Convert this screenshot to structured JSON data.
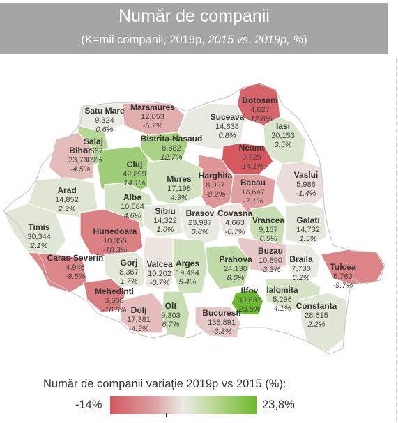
{
  "header": {
    "title": "Număr de companii",
    "subtitle_prefix": "(K=mii companii, 2019p, ",
    "subtitle_italic": "2015 vs. 2019p, %",
    "subtitle_suffix": ")"
  },
  "legend": {
    "title": "Număr de companii variație 2019p vs 2015 (%):",
    "min_label": "-14%",
    "max_label": "23,8%",
    "colors": {
      "low": "#d4585e",
      "mid": "#ecebe6",
      "high": "#6cba2d"
    }
  },
  "counties": [
    {
      "name": "Satu Mare",
      "value": "9,324",
      "change": "0.6%",
      "pct": 0.6
    },
    {
      "name": "Maramures",
      "value": "12,053",
      "change": "-5.7%",
      "pct": -5.7
    },
    {
      "name": "Botosani",
      "value": "4,627",
      "change": "-12.8%",
      "pct": -12.8
    },
    {
      "name": "Suceava",
      "value": "14,638",
      "change": "0.8%",
      "pct": 0.8
    },
    {
      "name": "Salaj",
      "value": "6,667",
      "change": "9.9%",
      "pct": 9.9
    },
    {
      "name": "Bistrita-Nasaud",
      "value": "8,882",
      "change": "12.7%",
      "pct": 12.7
    },
    {
      "name": "Iasi",
      "value": "20,153",
      "change": "3.5%",
      "pct": 3.5
    },
    {
      "name": "Bihor",
      "value": "23,799",
      "change": "-4.5%",
      "pct": -4.5
    },
    {
      "name": "Neamt",
      "value": "9,725",
      "change": "-14.1%",
      "pct": -14.1
    },
    {
      "name": "Cluj",
      "value": "42,899",
      "change": "14.1%",
      "pct": 14.1
    },
    {
      "name": "Harghita",
      "value": "8,097",
      "change": "-8.2%",
      "pct": -8.2
    },
    {
      "name": "Mures",
      "value": "17,198",
      "change": "4.9%",
      "pct": 4.9
    },
    {
      "name": "Bacau",
      "value": "13,647",
      "change": "-7.1%",
      "pct": -7.1
    },
    {
      "name": "Vaslui",
      "value": "5,988",
      "change": "-1.4%",
      "pct": -1.4
    },
    {
      "name": "Arad",
      "value": "14,852",
      "change": "2.3%",
      "pct": 2.3
    },
    {
      "name": "Alba",
      "value": "10,684",
      "change": "4.6%",
      "pct": 4.6
    },
    {
      "name": "Sibiu",
      "value": "14,322",
      "change": "1.6%",
      "pct": 1.6
    },
    {
      "name": "Brasov",
      "value": "23,987",
      "change": "0.8%",
      "pct": 0.8
    },
    {
      "name": "Covasna",
      "value": "4,663",
      "change": "-0.7%",
      "pct": -0.7
    },
    {
      "name": "Vrancea",
      "value": "9,187",
      "change": "6.5%",
      "pct": 6.5
    },
    {
      "name": "Galati",
      "value": "14,732",
      "change": "1.5%",
      "pct": 1.5
    },
    {
      "name": "Timis",
      "value": "30,344",
      "change": "2.1%",
      "pct": 2.1
    },
    {
      "name": "Hunedoara",
      "value": "10,355",
      "change": "-10.3%",
      "pct": -10.3
    },
    {
      "name": "Buzau",
      "value": "10,890",
      "change": "-3.3%",
      "pct": -3.3
    },
    {
      "name": "Braila",
      "value": "7,730",
      "change": "0.2%",
      "pct": 0.2
    },
    {
      "name": "Caras-Severin",
      "value": "4,946",
      "change": "-9.5%",
      "pct": -9.5
    },
    {
      "name": "Gorj",
      "value": "8,367",
      "change": "1.7%",
      "pct": 1.7
    },
    {
      "name": "Valcea",
      "value": "10,202",
      "change": "-0.7%",
      "pct": -0.7
    },
    {
      "name": "Arges",
      "value": "19,494",
      "change": "5.4%",
      "pct": 5.4
    },
    {
      "name": "Prahova",
      "value": "24,130",
      "change": "8.0%",
      "pct": 8.0
    },
    {
      "name": "Tulcea",
      "value": "5,763",
      "change": "-9.7%",
      "pct": -9.7
    },
    {
      "name": "Mehedinti",
      "value": "3,608",
      "change": "-10.5%",
      "pct": -10.5
    },
    {
      "name": "Ilfov",
      "value": "30,837",
      "change": "23.8%",
      "pct": 23.8
    },
    {
      "name": "Ialomita",
      "value": "5,296",
      "change": "4.1%",
      "pct": 4.1
    },
    {
      "name": "Dolj",
      "value": "17,381",
      "change": "-4.3%",
      "pct": -4.3
    },
    {
      "name": "Olt",
      "value": "9,303",
      "change": "6.7%",
      "pct": 6.7
    },
    {
      "name": "Bucuresti",
      "value": "136,891",
      "change": "-3.3%",
      "pct": -3.3
    },
    {
      "name": "Constanta",
      "value": "28,615",
      "change": "2.2%",
      "pct": 2.2
    }
  ]
}
